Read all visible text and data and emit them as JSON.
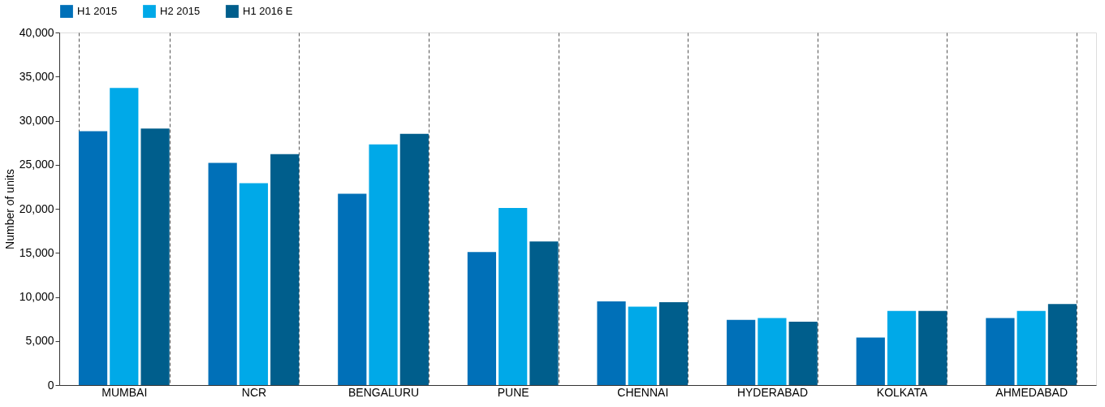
{
  "chart_data": {
    "type": "bar",
    "ylabel": "Number of units",
    "categories": [
      "MUMBAI",
      "NCR",
      "BENGALURU",
      "PUNE",
      "CHENNAI",
      "HYDERABAD",
      "KOLKATA",
      "AHMEDABAD"
    ],
    "series": [
      {
        "name": "H1 2015",
        "color": "#0070b8",
        "values": [
          28800,
          25200,
          21700,
          15100,
          9500,
          7400,
          5400,
          7600
        ]
      },
      {
        "name": "H2 2015",
        "color": "#00a9e8",
        "values": [
          33700,
          22900,
          27300,
          20100,
          8900,
          7600,
          8400,
          8400
        ]
      },
      {
        "name": "H1 2016 E",
        "color": "#005e8c",
        "values": [
          29100,
          26200,
          28500,
          16300,
          9400,
          7200,
          8400,
          9200
        ]
      }
    ],
    "ylim": [
      0,
      40000
    ],
    "yticks": [
      0,
      {
        "value": 5000,
        "label": "5,000"
      },
      {
        "value": 10000,
        "label": "10,000"
      },
      {
        "value": 15000,
        "label": "15,000"
      },
      {
        "value": 20000,
        "label": "20,000"
      },
      {
        "value": 25000,
        "label": "25,000"
      },
      {
        "value": 30000,
        "label": "30,000"
      },
      {
        "value": 35000,
        "label": "35,000"
      },
      {
        "value": 40000,
        "label": "40,000"
      }
    ],
    "grid": "x",
    "legend": "top left"
  }
}
